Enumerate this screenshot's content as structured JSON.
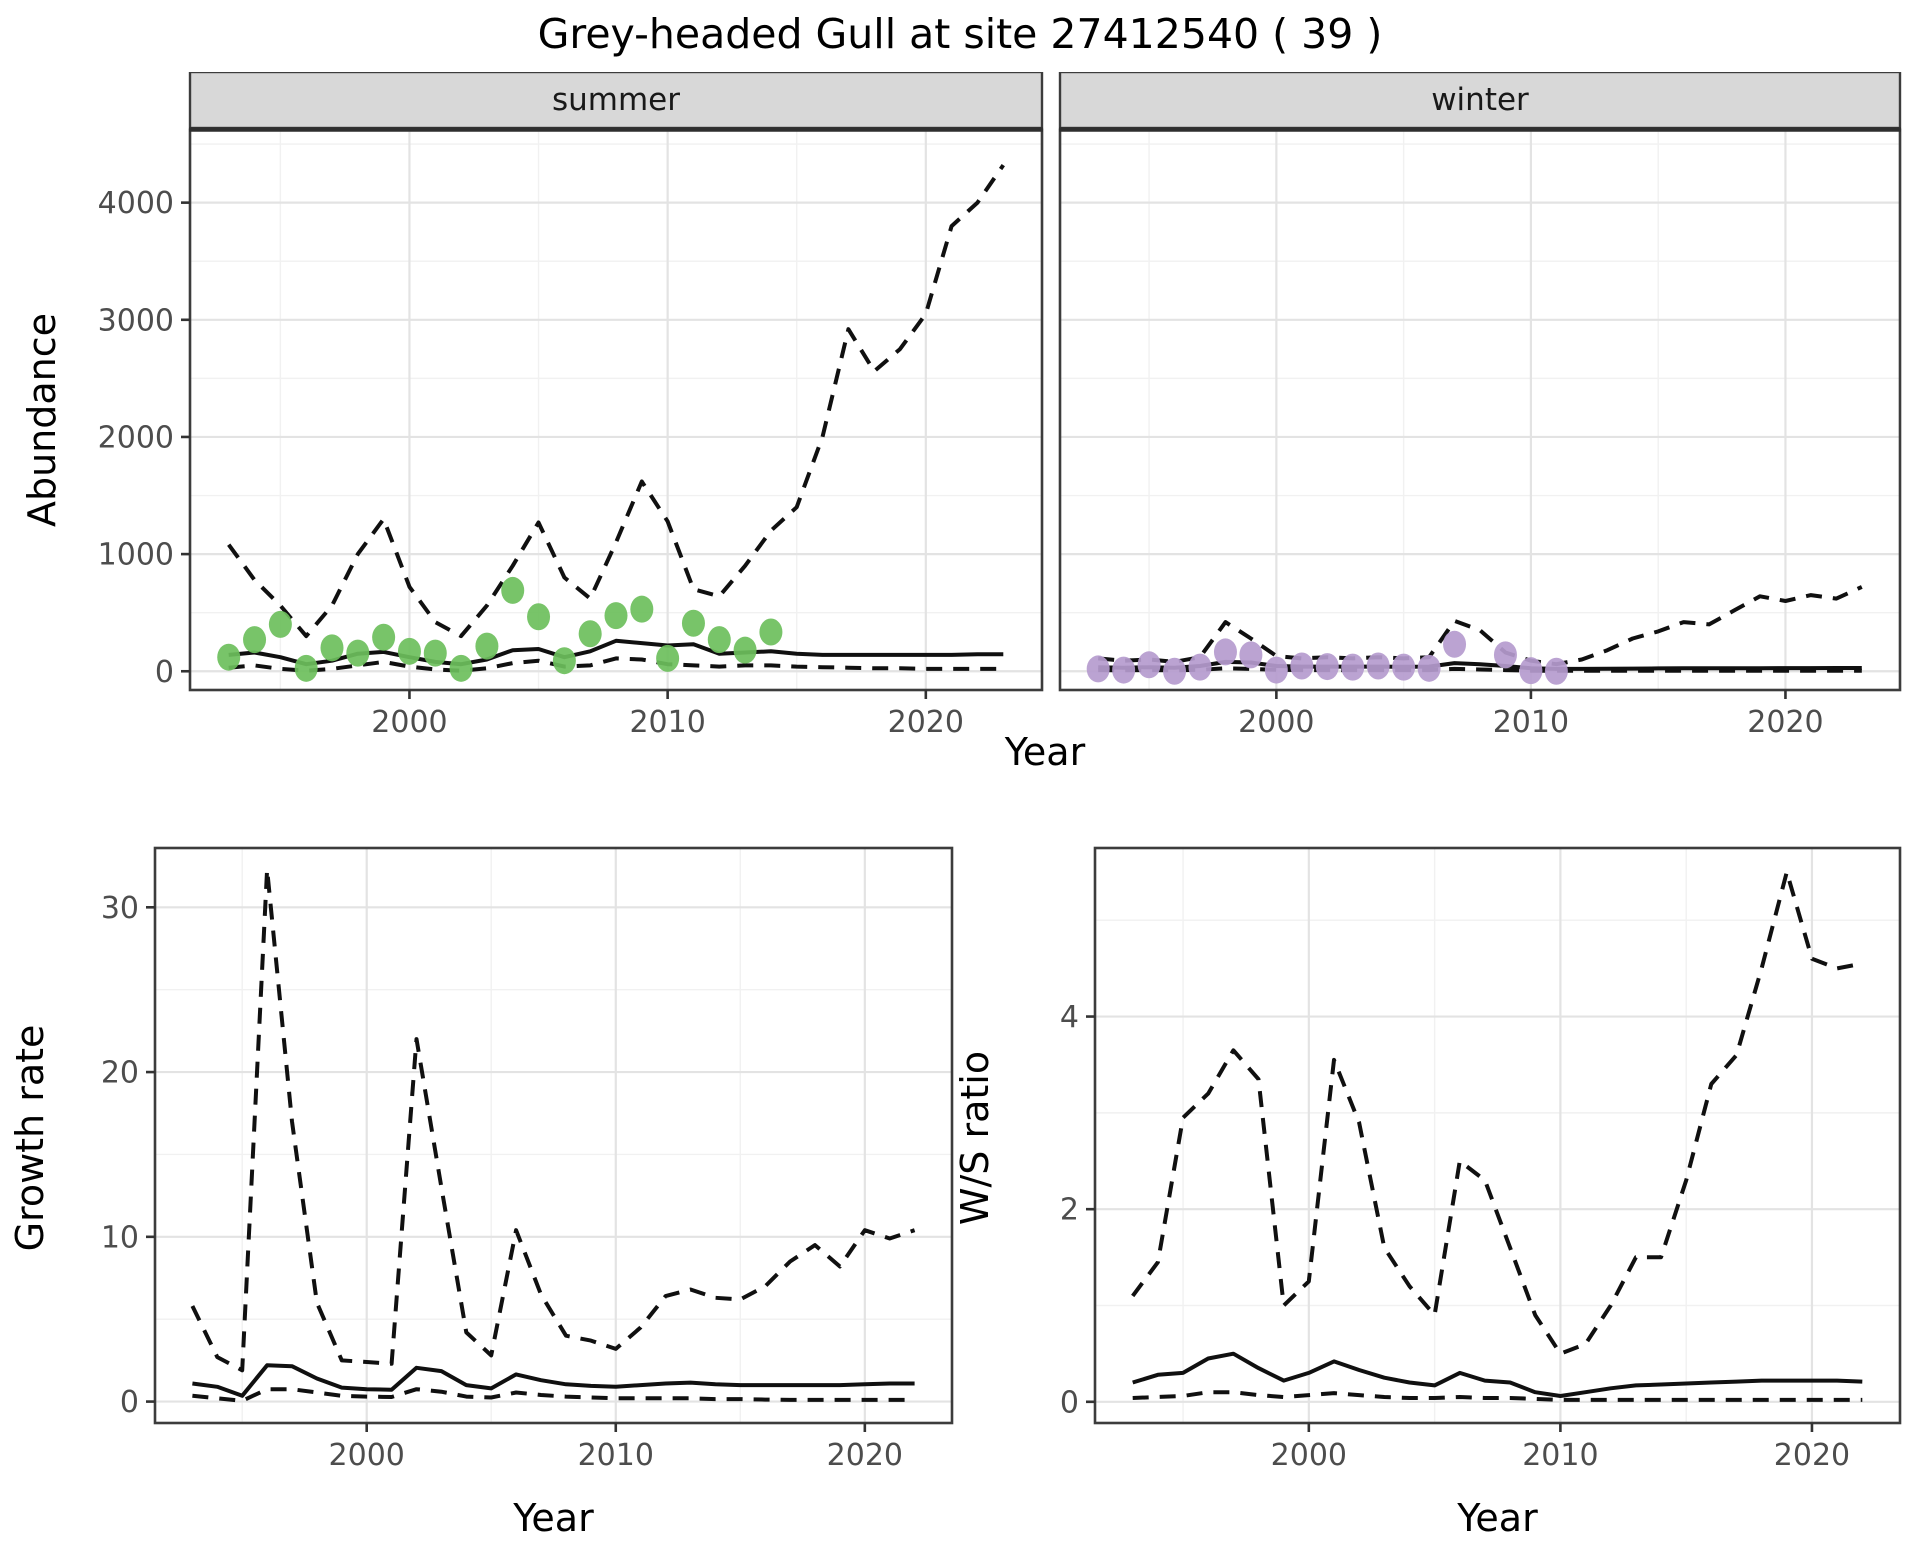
{
  "title": "Grey-headed Gull at site 27412540 ( 39 )",
  "labels": {
    "x_axis": "Year",
    "y_axis_abundance": "Abundance",
    "y_axis_growth": "Growth rate",
    "y_axis_ws": "W/S ratio",
    "facet_summer": "summer",
    "facet_winter": "winter"
  },
  "colors": {
    "summer_point": "#6cbf5c",
    "winter_point": "#b59bce",
    "line": "#101010",
    "strip_bg": "#d8d8d8",
    "strip_text": "#191919",
    "panel_border": "#3c3c3c",
    "grid_major": "#e3e3e3",
    "grid_minor": "#f1f1f1",
    "tick_label": "#4d4d4d",
    "background": "#ffffff"
  },
  "chart_data": [
    {
      "id": "abundance_summer",
      "type": "scatter+line",
      "facet_label": "summer",
      "xlabel": "Year",
      "ylabel": "Abundance",
      "xlim": [
        1991.5,
        2024.5
      ],
      "ylim": [
        -160,
        4620
      ],
      "x_ticks": [
        2000,
        2010,
        2020
      ],
      "x_minor": [
        1995,
        2005,
        2015
      ],
      "y_ticks": [
        0,
        1000,
        2000,
        3000,
        4000
      ],
      "y_minor": [
        500,
        1500,
        2500,
        3500,
        4500
      ],
      "points": {
        "color_key": "summer_point",
        "x": [
          1993,
          1994,
          1995,
          1996,
          1997,
          1998,
          1999,
          2000,
          2001,
          2002,
          2003,
          2004,
          2005,
          2006,
          2007,
          2008,
          2009,
          2010,
          2011,
          2012,
          2013,
          2014
        ],
        "y": [
          120,
          270,
          400,
          25,
          200,
          155,
          290,
          170,
          155,
          25,
          215,
          690,
          465,
          90,
          320,
          475,
          530,
          110,
          410,
          270,
          180,
          335
        ]
      },
      "series": [
        {
          "name": "model fit",
          "style": "solid",
          "x": [
            1993,
            1994,
            1995,
            1996,
            1997,
            1998,
            1999,
            2000,
            2001,
            2002,
            2003,
            2004,
            2005,
            2006,
            2007,
            2008,
            2009,
            2010,
            2011,
            2012,
            2013,
            2014,
            2015,
            2016,
            2017,
            2018,
            2019,
            2020,
            2021,
            2022,
            2023
          ],
          "y": [
            140,
            160,
            120,
            60,
            90,
            150,
            165,
            120,
            80,
            60,
            100,
            180,
            190,
            120,
            170,
            260,
            240,
            220,
            230,
            150,
            160,
            170,
            150,
            140,
            140,
            140,
            140,
            140,
            140,
            145,
            145
          ]
        },
        {
          "name": "upper CI",
          "style": "dashed",
          "x": [
            1993,
            1994,
            1995,
            1996,
            1997,
            1998,
            1999,
            2000,
            2001,
            2002,
            2003,
            2004,
            2005,
            2006,
            2007,
            2008,
            2009,
            2010,
            2011,
            2012,
            2013,
            2014,
            2015,
            2016,
            2017,
            2018,
            2019,
            2020,
            2021,
            2022,
            2023
          ],
          "y": [
            1080,
            780,
            560,
            300,
            560,
            1000,
            1300,
            720,
            420,
            300,
            560,
            900,
            1270,
            800,
            620,
            1100,
            1620,
            1280,
            700,
            640,
            900,
            1200,
            1400,
            2000,
            2920,
            2560,
            2750,
            3050,
            3800,
            4000,
            4320
          ]
        },
        {
          "name": "lower CI",
          "style": "dashed",
          "x": [
            1993,
            1994,
            1995,
            1996,
            1997,
            1998,
            1999,
            2000,
            2001,
            2002,
            2003,
            2004,
            2005,
            2006,
            2007,
            2008,
            2009,
            2010,
            2011,
            2012,
            2013,
            2014,
            2015,
            2016,
            2017,
            2018,
            2019,
            2020,
            2021,
            2022,
            2023
          ],
          "y": [
            30,
            50,
            20,
            5,
            20,
            50,
            80,
            40,
            15,
            5,
            25,
            70,
            90,
            40,
            50,
            110,
            100,
            60,
            50,
            40,
            50,
            50,
            40,
            35,
            30,
            25,
            25,
            20,
            20,
            20,
            20
          ]
        }
      ]
    },
    {
      "id": "abundance_winter",
      "type": "scatter+line",
      "facet_label": "winter",
      "xlabel": "Year",
      "ylabel": "Abundance",
      "xlim": [
        1991.5,
        2024.5
      ],
      "ylim": [
        -160,
        4620
      ],
      "x_ticks": [
        2000,
        2010,
        2020
      ],
      "x_minor": [
        1995,
        2005,
        2015
      ],
      "y_ticks": [
        0,
        1000,
        2000,
        3000,
        4000
      ],
      "y_minor": [
        500,
        1500,
        2500,
        3500,
        4500
      ],
      "points": {
        "color_key": "winter_point",
        "x": [
          1993,
          1994,
          1995,
          1996,
          1997,
          1998,
          1999,
          2000,
          2001,
          2002,
          2003,
          2004,
          2005,
          2006,
          2007,
          2009,
          2010,
          2011
        ],
        "y": [
          20,
          10,
          55,
          0,
          35,
          165,
          140,
          10,
          45,
          40,
          35,
          45,
          35,
          25,
          230,
          140,
          5,
          0
        ]
      },
      "series": [
        {
          "name": "model fit",
          "style": "solid",
          "x": [
            1993,
            1994,
            1995,
            1996,
            1997,
            1998,
            1999,
            2000,
            2001,
            2002,
            2003,
            2004,
            2005,
            2006,
            2007,
            2008,
            2009,
            2010,
            2011,
            2012,
            2013,
            2014,
            2015,
            2016,
            2017,
            2018,
            2019,
            2020,
            2021,
            2022,
            2023
          ],
          "y": [
            35,
            30,
            35,
            30,
            45,
            80,
            75,
            45,
            40,
            40,
            40,
            40,
            38,
            40,
            70,
            60,
            45,
            25,
            20,
            20,
            22,
            23,
            24,
            25,
            25,
            26,
            26,
            27,
            27,
            28,
            28
          ]
        },
        {
          "name": "upper CI",
          "style": "dashed",
          "x": [
            1993,
            1994,
            1995,
            1996,
            1997,
            1998,
            1999,
            2000,
            2001,
            2002,
            2003,
            2004,
            2005,
            2006,
            2007,
            2008,
            2009,
            2010,
            2011,
            2012,
            2013,
            2014,
            2015,
            2016,
            2017,
            2018,
            2019,
            2020,
            2021,
            2022,
            2023
          ],
          "y": [
            110,
            90,
            100,
            80,
            120,
            420,
            280,
            130,
            110,
            120,
            110,
            120,
            110,
            120,
            430,
            350,
            160,
            90,
            60,
            100,
            180,
            280,
            340,
            420,
            400,
            520,
            640,
            600,
            650,
            620,
            720
          ]
        },
        {
          "name": "lower CI",
          "style": "dashed",
          "x": [
            1993,
            1994,
            1995,
            1996,
            1997,
            1998,
            1999,
            2000,
            2001,
            2002,
            2003,
            2004,
            2005,
            2006,
            2007,
            2008,
            2009,
            2010,
            2011,
            2012,
            2013,
            2014,
            2015,
            2016,
            2017,
            2018,
            2019,
            2020,
            2021,
            2022,
            2023
          ],
          "y": [
            10,
            8,
            10,
            8,
            12,
            25,
            20,
            12,
            10,
            10,
            10,
            10,
            10,
            10,
            20,
            15,
            10,
            5,
            4,
            4,
            5,
            5,
            5,
            5,
            5,
            5,
            5,
            5,
            5,
            5,
            5
          ]
        }
      ]
    },
    {
      "id": "growth_rate",
      "type": "line",
      "facet_label": "",
      "xlabel": "Year",
      "ylabel": "Growth rate",
      "xlim": [
        1991.5,
        2023.5
      ],
      "ylim": [
        -1.3,
        33.6
      ],
      "x_ticks": [
        2000,
        2010,
        2020
      ],
      "x_minor": [
        1995,
        2005,
        2015
      ],
      "y_ticks": [
        0,
        10,
        20,
        30
      ],
      "y_minor": [
        5,
        15,
        25
      ],
      "series": [
        {
          "name": "model fit",
          "style": "solid",
          "x": [
            1993,
            1994,
            1995,
            1996,
            1997,
            1998,
            1999,
            2000,
            2001,
            2002,
            2003,
            2004,
            2005,
            2006,
            2007,
            2008,
            2009,
            2010,
            2011,
            2012,
            2013,
            2014,
            2015,
            2016,
            2017,
            2018,
            2019,
            2020,
            2021,
            2022
          ],
          "y": [
            1.1,
            0.9,
            0.35,
            2.2,
            2.15,
            1.4,
            0.85,
            0.75,
            0.72,
            2.05,
            1.85,
            1.0,
            0.8,
            1.65,
            1.3,
            1.05,
            0.95,
            0.9,
            1.0,
            1.1,
            1.15,
            1.05,
            1.0,
            1.0,
            1.0,
            1.0,
            1.0,
            1.05,
            1.1,
            1.1
          ]
        },
        {
          "name": "upper CI",
          "style": "dashed",
          "x": [
            1993,
            1994,
            1995,
            1996,
            1997,
            1998,
            1999,
            2000,
            2001,
            2002,
            2003,
            2004,
            2005,
            2006,
            2007,
            2008,
            2009,
            2010,
            2011,
            2012,
            2013,
            2014,
            2015,
            2016,
            2017,
            2018,
            2019,
            2020,
            2021,
            2022
          ],
          "y": [
            5.8,
            2.7,
            1.9,
            32.3,
            17,
            6,
            2.5,
            2.4,
            2.3,
            22,
            13,
            4.2,
            2.8,
            10.4,
            6.5,
            4,
            3.7,
            3.2,
            4.5,
            6.4,
            6.8,
            6.3,
            6.2,
            7,
            8.5,
            9.5,
            8.2,
            10.4,
            9.9,
            10.4
          ]
        },
        {
          "name": "lower CI",
          "style": "dashed",
          "x": [
            1993,
            1994,
            1995,
            1996,
            1997,
            1998,
            1999,
            2000,
            2001,
            2002,
            2003,
            2004,
            2005,
            2006,
            2007,
            2008,
            2009,
            2010,
            2011,
            2012,
            2013,
            2014,
            2015,
            2016,
            2017,
            2018,
            2019,
            2020,
            2021,
            2022
          ],
          "y": [
            0.35,
            0.2,
            0.05,
            0.75,
            0.75,
            0.55,
            0.35,
            0.3,
            0.28,
            0.75,
            0.6,
            0.3,
            0.25,
            0.55,
            0.4,
            0.3,
            0.25,
            0.2,
            0.2,
            0.2,
            0.2,
            0.15,
            0.15,
            0.12,
            0.1,
            0.1,
            0.1,
            0.1,
            0.1,
            0.1
          ]
        }
      ]
    },
    {
      "id": "ws_ratio",
      "type": "line",
      "facet_label": "",
      "xlabel": "Year",
      "ylabel": "W/S ratio",
      "xlim": [
        1991.5,
        2023.5
      ],
      "ylim": [
        -0.22,
        5.75
      ],
      "x_ticks": [
        2000,
        2010,
        2020
      ],
      "x_minor": [
        1995,
        2005,
        2015
      ],
      "y_ticks": [
        0,
        2,
        4
      ],
      "y_minor": [
        1,
        3,
        5
      ],
      "series": [
        {
          "name": "model fit",
          "style": "solid",
          "x": [
            1993,
            1994,
            1995,
            1996,
            1997,
            1998,
            1999,
            2000,
            2001,
            2002,
            2003,
            2004,
            2005,
            2006,
            2007,
            2008,
            2009,
            2010,
            2011,
            2012,
            2013,
            2014,
            2015,
            2016,
            2017,
            2018,
            2019,
            2020,
            2021,
            2022
          ],
          "y": [
            0.2,
            0.28,
            0.3,
            0.45,
            0.5,
            0.35,
            0.22,
            0.3,
            0.42,
            0.33,
            0.25,
            0.2,
            0.17,
            0.3,
            0.22,
            0.2,
            0.1,
            0.06,
            0.1,
            0.14,
            0.17,
            0.18,
            0.19,
            0.2,
            0.21,
            0.22,
            0.22,
            0.22,
            0.22,
            0.21
          ]
        },
        {
          "name": "upper CI",
          "style": "dashed",
          "x": [
            1993,
            1994,
            1995,
            1996,
            1997,
            1998,
            1999,
            2000,
            2001,
            2002,
            2003,
            2004,
            2005,
            2006,
            2007,
            2008,
            2009,
            2010,
            2011,
            2012,
            2013,
            2014,
            2015,
            2016,
            2017,
            2018,
            2019,
            2020,
            2021,
            2022
          ],
          "y": [
            1.1,
            1.45,
            2.95,
            3.2,
            3.65,
            3.35,
            1.0,
            1.25,
            3.55,
            2.9,
            1.6,
            1.2,
            0.9,
            2.5,
            2.3,
            1.6,
            0.9,
            0.5,
            0.6,
            1.0,
            1.5,
            1.5,
            2.3,
            3.3,
            3.6,
            4.5,
            5.5,
            4.6,
            4.5,
            4.55
          ]
        },
        {
          "name": "lower CI",
          "style": "dashed",
          "x": [
            1993,
            1994,
            1995,
            1996,
            1997,
            1998,
            1999,
            2000,
            2001,
            2002,
            2003,
            2004,
            2005,
            2006,
            2007,
            2008,
            2009,
            2010,
            2011,
            2012,
            2013,
            2014,
            2015,
            2016,
            2017,
            2018,
            2019,
            2020,
            2021,
            2022
          ],
          "y": [
            0.04,
            0.05,
            0.06,
            0.1,
            0.1,
            0.07,
            0.05,
            0.07,
            0.09,
            0.07,
            0.05,
            0.04,
            0.04,
            0.05,
            0.04,
            0.04,
            0.03,
            0.02,
            0.02,
            0.02,
            0.02,
            0.02,
            0.02,
            0.02,
            0.02,
            0.02,
            0.02,
            0.02,
            0.02,
            0.02
          ]
        }
      ]
    }
  ]
}
